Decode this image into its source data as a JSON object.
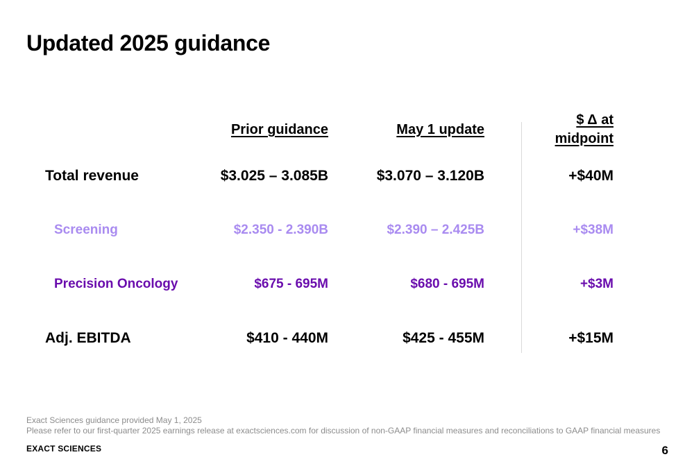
{
  "title": "Updated 2025 guidance",
  "columns": {
    "prior": "Prior guidance",
    "update": "May 1 update",
    "delta_line1": "$ Δ at",
    "delta_line2": "midpoint"
  },
  "rows": [
    {
      "label": "Total revenue",
      "prior": "$3.025 – 3.085B",
      "update": "$3.070 – 3.120B",
      "delta": "+$40M"
    },
    {
      "label": "Screening",
      "prior": "$2.350 - 2.390B",
      "update": "$2.390 – 2.425B",
      "delta": "+$38M"
    },
    {
      "label": "Precision Oncology",
      "prior": "$675 - 695M",
      "update": "$680 - 695M",
      "delta": "+$3M"
    },
    {
      "label": "Adj. EBITDA",
      "prior": "$410 - 440M",
      "update": "$425 - 455M",
      "delta": "+$15M"
    }
  ],
  "colors": {
    "screening": "#a98bf0",
    "oncology": "#6a0dad",
    "divider": "#d9d9d9",
    "footnote": "#8c8c8c"
  },
  "footnotes": {
    "line1": "Exact Sciences guidance provided May 1, 2025",
    "line2": "Please refer to our first-quarter 2025 earnings release at exactsciences.com for discussion of non-GAAP financial measures and reconciliations to GAAP financial measures"
  },
  "brand": "EXACT SCIENCES",
  "page_number": "6"
}
